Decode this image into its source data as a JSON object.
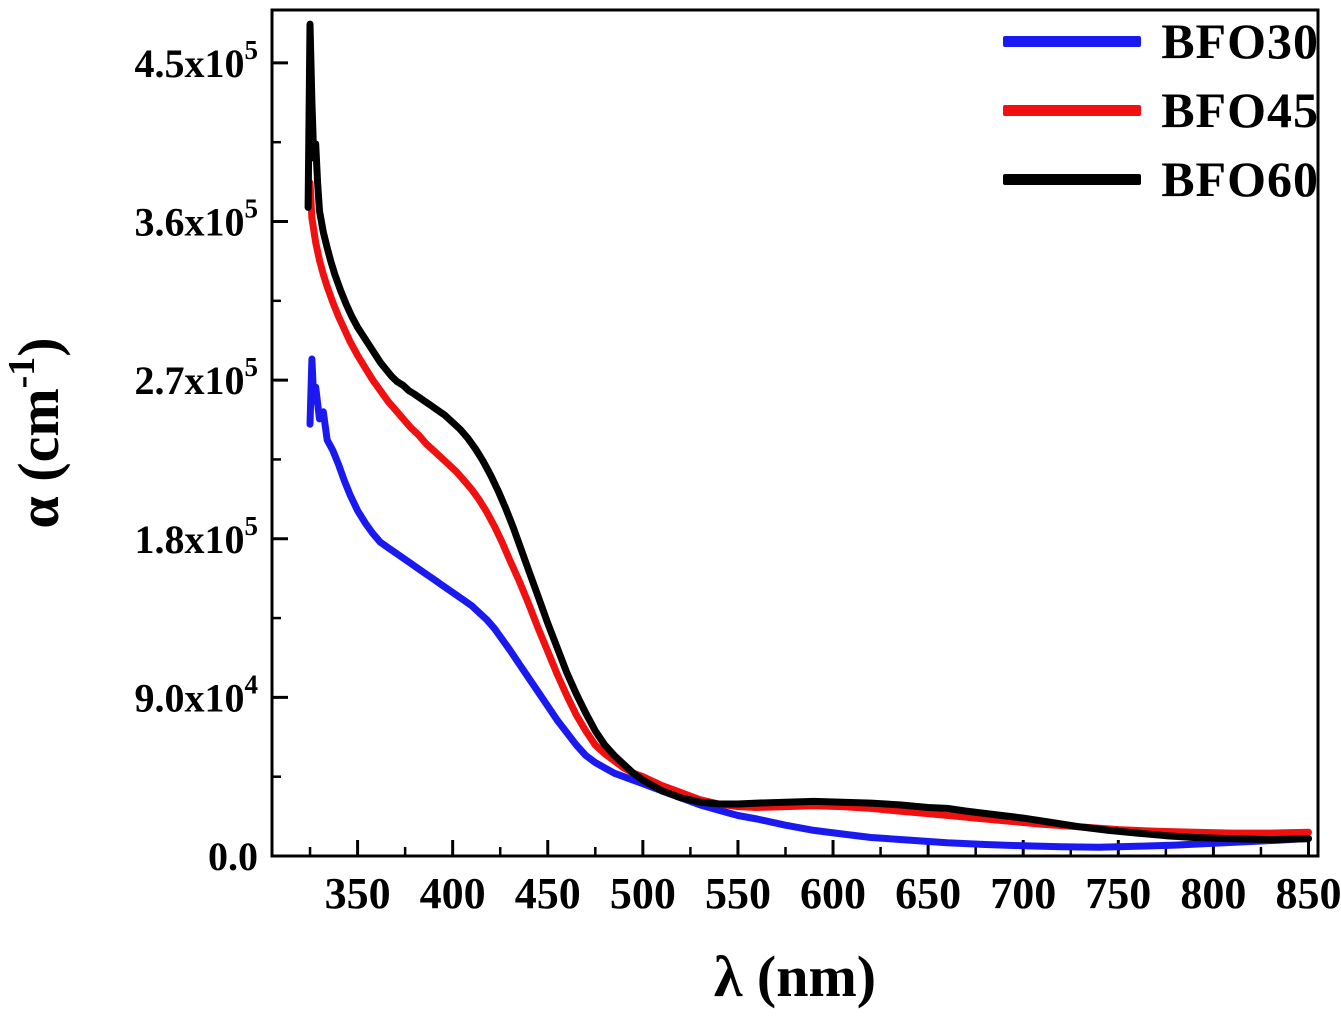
{
  "figure": {
    "background": "#ffffff",
    "axis_color": "#000000"
  },
  "chart_data": {
    "type": "line",
    "title": "",
    "xlabel": "λ (nm)",
    "ylabel": "α (cm⁻¹)",
    "ylabel_parts": {
      "main": "α (cm",
      "sup": "-1",
      "close": ")"
    },
    "xlim": [
      305,
      855
    ],
    "ylim": [
      0,
      480000
    ],
    "grid": false,
    "legend_position": "top-right",
    "x_ticks": [
      350,
      400,
      450,
      500,
      550,
      600,
      650,
      700,
      750,
      800,
      850
    ],
    "y_ticks": [
      {
        "value": 0,
        "mantissa": "0.0",
        "exponent": ""
      },
      {
        "value": 90000,
        "mantissa": "9.0x10",
        "exponent": "4"
      },
      {
        "value": 180000,
        "mantissa": "1.8x10",
        "exponent": "5"
      },
      {
        "value": 270000,
        "mantissa": "2.7x10",
        "exponent": "5"
      },
      {
        "value": 360000,
        "mantissa": "3.6x10",
        "exponent": "5"
      },
      {
        "value": 450000,
        "mantissa": "4.5x10",
        "exponent": "5"
      }
    ],
    "series": [
      {
        "name": "BFO30",
        "color": "#1a1af0",
        "points": [
          [
            325,
            245000
          ],
          [
            326,
            282000
          ],
          [
            327,
            258000
          ],
          [
            328,
            266000
          ],
          [
            330,
            248000
          ],
          [
            332,
            252000
          ],
          [
            334,
            236000
          ],
          [
            337,
            230000
          ],
          [
            340,
            222000
          ],
          [
            343,
            213000
          ],
          [
            346,
            205000
          ],
          [
            350,
            196000
          ],
          [
            354,
            189000
          ],
          [
            358,
            183000
          ],
          [
            362,
            178000
          ],
          [
            366,
            175000
          ],
          [
            370,
            172000
          ],
          [
            374,
            169000
          ],
          [
            378,
            166000
          ],
          [
            382,
            163000
          ],
          [
            386,
            160000
          ],
          [
            390,
            157000
          ],
          [
            394,
            154000
          ],
          [
            398,
            151000
          ],
          [
            402,
            148000
          ],
          [
            406,
            145000
          ],
          [
            410,
            142000
          ],
          [
            414,
            138000
          ],
          [
            418,
            134000
          ],
          [
            422,
            129000
          ],
          [
            426,
            123000
          ],
          [
            430,
            117000
          ],
          [
            435,
            109000
          ],
          [
            440,
            101000
          ],
          [
            445,
            93000
          ],
          [
            450,
            85000
          ],
          [
            455,
            77000
          ],
          [
            460,
            70000
          ],
          [
            465,
            63000
          ],
          [
            470,
            57000
          ],
          [
            475,
            53000
          ],
          [
            480,
            50000
          ],
          [
            485,
            47000
          ],
          [
            490,
            45000
          ],
          [
            495,
            43000
          ],
          [
            500,
            41000
          ],
          [
            510,
            37000
          ],
          [
            520,
            33000
          ],
          [
            530,
            29000
          ],
          [
            540,
            26000
          ],
          [
            550,
            23000
          ],
          [
            560,
            21000
          ],
          [
            575,
            17500
          ],
          [
            590,
            14500
          ],
          [
            605,
            12500
          ],
          [
            620,
            10500
          ],
          [
            640,
            9000
          ],
          [
            660,
            7500
          ],
          [
            680,
            6500
          ],
          [
            700,
            5800
          ],
          [
            720,
            5200
          ],
          [
            740,
            5000
          ],
          [
            760,
            5500
          ],
          [
            780,
            6200
          ],
          [
            800,
            7200
          ],
          [
            820,
            8200
          ],
          [
            835,
            9000
          ],
          [
            850,
            10000
          ]
        ]
      },
      {
        "name": "BFO45",
        "color": "#f01010",
        "points": [
          [
            325,
            382000
          ],
          [
            326,
            362000
          ],
          [
            327,
            355000
          ],
          [
            328,
            348000
          ],
          [
            330,
            338000
          ],
          [
            332,
            330000
          ],
          [
            334,
            323000
          ],
          [
            337,
            314000
          ],
          [
            340,
            306000
          ],
          [
            343,
            299000
          ],
          [
            346,
            292000
          ],
          [
            350,
            284000
          ],
          [
            354,
            277000
          ],
          [
            358,
            270000
          ],
          [
            362,
            264000
          ],
          [
            366,
            258000
          ],
          [
            370,
            253000
          ],
          [
            374,
            248000
          ],
          [
            378,
            243000
          ],
          [
            382,
            239000
          ],
          [
            386,
            234000
          ],
          [
            390,
            230000
          ],
          [
            394,
            226000
          ],
          [
            398,
            222000
          ],
          [
            402,
            218000
          ],
          [
            406,
            213000
          ],
          [
            410,
            208000
          ],
          [
            414,
            202000
          ],
          [
            418,
            195000
          ],
          [
            422,
            187000
          ],
          [
            426,
            178000
          ],
          [
            430,
            168000
          ],
          [
            435,
            156000
          ],
          [
            440,
            143000
          ],
          [
            445,
            129000
          ],
          [
            450,
            116000
          ],
          [
            455,
            103000
          ],
          [
            460,
            91000
          ],
          [
            465,
            80000
          ],
          [
            470,
            71000
          ],
          [
            475,
            63000
          ],
          [
            480,
            58000
          ],
          [
            485,
            54000
          ],
          [
            490,
            50000
          ],
          [
            495,
            47000
          ],
          [
            500,
            45000
          ],
          [
            510,
            40000
          ],
          [
            520,
            36000
          ],
          [
            530,
            32000
          ],
          [
            540,
            29500
          ],
          [
            550,
            28000
          ],
          [
            560,
            27500
          ],
          [
            575,
            28000
          ],
          [
            590,
            28500
          ],
          [
            605,
            28000
          ],
          [
            620,
            27000
          ],
          [
            635,
            25500
          ],
          [
            650,
            24000
          ],
          [
            665,
            22500
          ],
          [
            680,
            21000
          ],
          [
            695,
            19500
          ],
          [
            710,
            18000
          ],
          [
            730,
            16500
          ],
          [
            750,
            15000
          ],
          [
            770,
            14000
          ],
          [
            790,
            13500
          ],
          [
            810,
            13000
          ],
          [
            830,
            13000
          ],
          [
            850,
            13500
          ]
        ]
      },
      {
        "name": "BFO60",
        "color": "#000000",
        "points": [
          [
            324,
            368000
          ],
          [
            325,
            472000
          ],
          [
            326,
            428000
          ],
          [
            327,
            396000
          ],
          [
            328,
            404000
          ],
          [
            329,
            382000
          ],
          [
            330,
            366000
          ],
          [
            332,
            354000
          ],
          [
            334,
            345000
          ],
          [
            336,
            337000
          ],
          [
            338,
            330000
          ],
          [
            341,
            321000
          ],
          [
            344,
            313000
          ],
          [
            347,
            306000
          ],
          [
            350,
            300000
          ],
          [
            353,
            295000
          ],
          [
            356,
            290000
          ],
          [
            359,
            285000
          ],
          [
            362,
            280000
          ],
          [
            365,
            276000
          ],
          [
            368,
            272000
          ],
          [
            371,
            269000
          ],
          [
            374,
            267000
          ],
          [
            377,
            264000
          ],
          [
            380,
            262000
          ],
          [
            384,
            259000
          ],
          [
            388,
            256000
          ],
          [
            392,
            253000
          ],
          [
            396,
            250000
          ],
          [
            400,
            246000
          ],
          [
            404,
            242000
          ],
          [
            408,
            237000
          ],
          [
            412,
            231000
          ],
          [
            416,
            224000
          ],
          [
            420,
            216000
          ],
          [
            424,
            207000
          ],
          [
            428,
            197000
          ],
          [
            432,
            186000
          ],
          [
            436,
            174000
          ],
          [
            440,
            162000
          ],
          [
            445,
            147000
          ],
          [
            450,
            132000
          ],
          [
            455,
            118000
          ],
          [
            460,
            104000
          ],
          [
            465,
            92000
          ],
          [
            470,
            81000
          ],
          [
            475,
            71000
          ],
          [
            480,
            63000
          ],
          [
            485,
            57000
          ],
          [
            490,
            52000
          ],
          [
            495,
            47000
          ],
          [
            500,
            43000
          ],
          [
            510,
            37000
          ],
          [
            520,
            33000
          ],
          [
            530,
            30500
          ],
          [
            540,
            29500
          ],
          [
            550,
            29500
          ],
          [
            560,
            30000
          ],
          [
            575,
            30500
          ],
          [
            590,
            31000
          ],
          [
            605,
            30500
          ],
          [
            620,
            30000
          ],
          [
            635,
            29000
          ],
          [
            650,
            27500
          ],
          [
            660,
            27000
          ],
          [
            670,
            25500
          ],
          [
            685,
            23500
          ],
          [
            700,
            21500
          ],
          [
            715,
            19000
          ],
          [
            730,
            16500
          ],
          [
            745,
            14500
          ],
          [
            760,
            13000
          ],
          [
            775,
            11500
          ],
          [
            790,
            10500
          ],
          [
            810,
            9800
          ],
          [
            830,
            9300
          ],
          [
            850,
            9800
          ]
        ]
      }
    ]
  }
}
